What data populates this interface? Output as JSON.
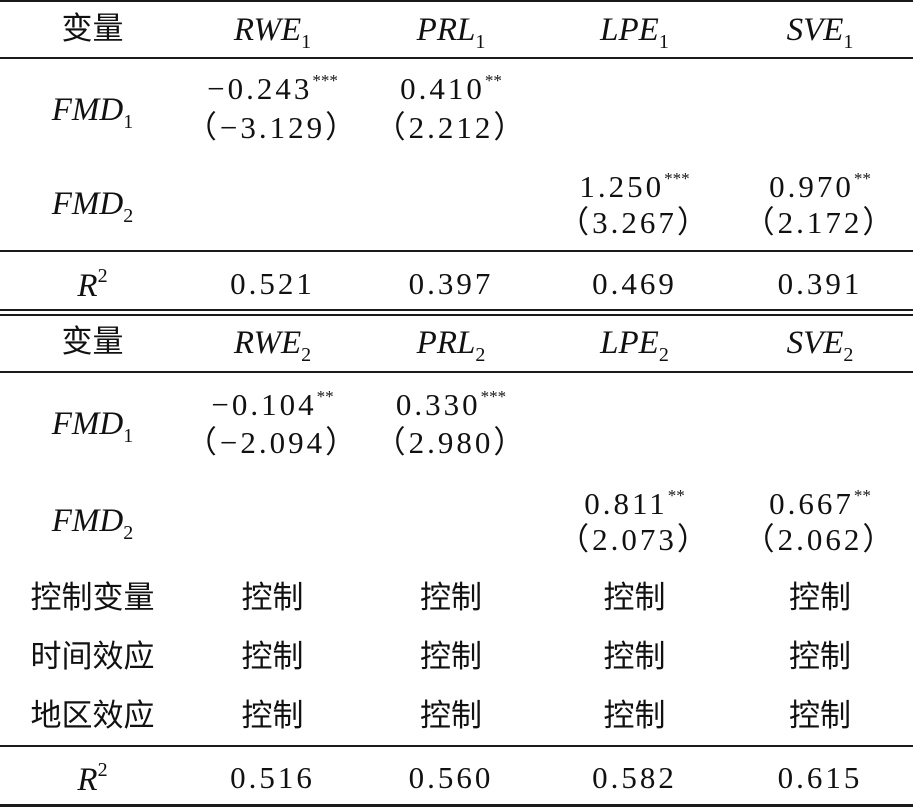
{
  "panel1": {
    "header": {
      "var_label": "变量",
      "cols": [
        "RWE",
        "PRL",
        "LPE",
        "SVE"
      ],
      "sub": "1"
    },
    "rows": [
      {
        "name": "FMD",
        "sub": "1",
        "cells": [
          {
            "coef": "−0.243",
            "stars": "***",
            "t": "（−3.129）"
          },
          {
            "coef": "0.410",
            "stars": "**",
            "t": "（2.212）"
          },
          null,
          null
        ]
      },
      {
        "name": "FMD",
        "sub": "2",
        "cells": [
          null,
          null,
          {
            "coef": "1.250",
            "stars": "***",
            "t": "（3.267）"
          },
          {
            "coef": "0.970",
            "stars": "**",
            "t": "（2.172）"
          }
        ]
      }
    ],
    "r2": {
      "label": "R",
      "sup": "2",
      "values": [
        "0.521",
        "0.397",
        "0.469",
        "0.391"
      ]
    }
  },
  "panel2": {
    "header": {
      "var_label": "变量",
      "cols": [
        "RWE",
        "PRL",
        "LPE",
        "SVE"
      ],
      "sub": "2"
    },
    "rows": [
      {
        "name": "FMD",
        "sub": "1",
        "cells": [
          {
            "coef": "−0.104",
            "stars": "**",
            "t": "（−2.094）"
          },
          {
            "coef": "0.330",
            "stars": "***",
            "t": "（2.980）"
          },
          null,
          null
        ]
      },
      {
        "name": "FMD",
        "sub": "2",
        "cells": [
          null,
          null,
          {
            "coef": "0.811",
            "stars": "**",
            "t": "（2.073）"
          },
          {
            "coef": "0.667",
            "stars": "**",
            "t": "（2.062）"
          }
        ]
      }
    ],
    "controls": [
      {
        "label": "控制变量",
        "values": [
          "控制",
          "控制",
          "控制",
          "控制"
        ]
      },
      {
        "label": "时间效应",
        "values": [
          "控制",
          "控制",
          "控制",
          "控制"
        ]
      },
      {
        "label": "地区效应",
        "values": [
          "控制",
          "控制",
          "控制",
          "控制"
        ]
      }
    ],
    "r2": {
      "label": "R",
      "sup": "2",
      "values": [
        "0.516",
        "0.560",
        "0.582",
        "0.615"
      ]
    }
  }
}
